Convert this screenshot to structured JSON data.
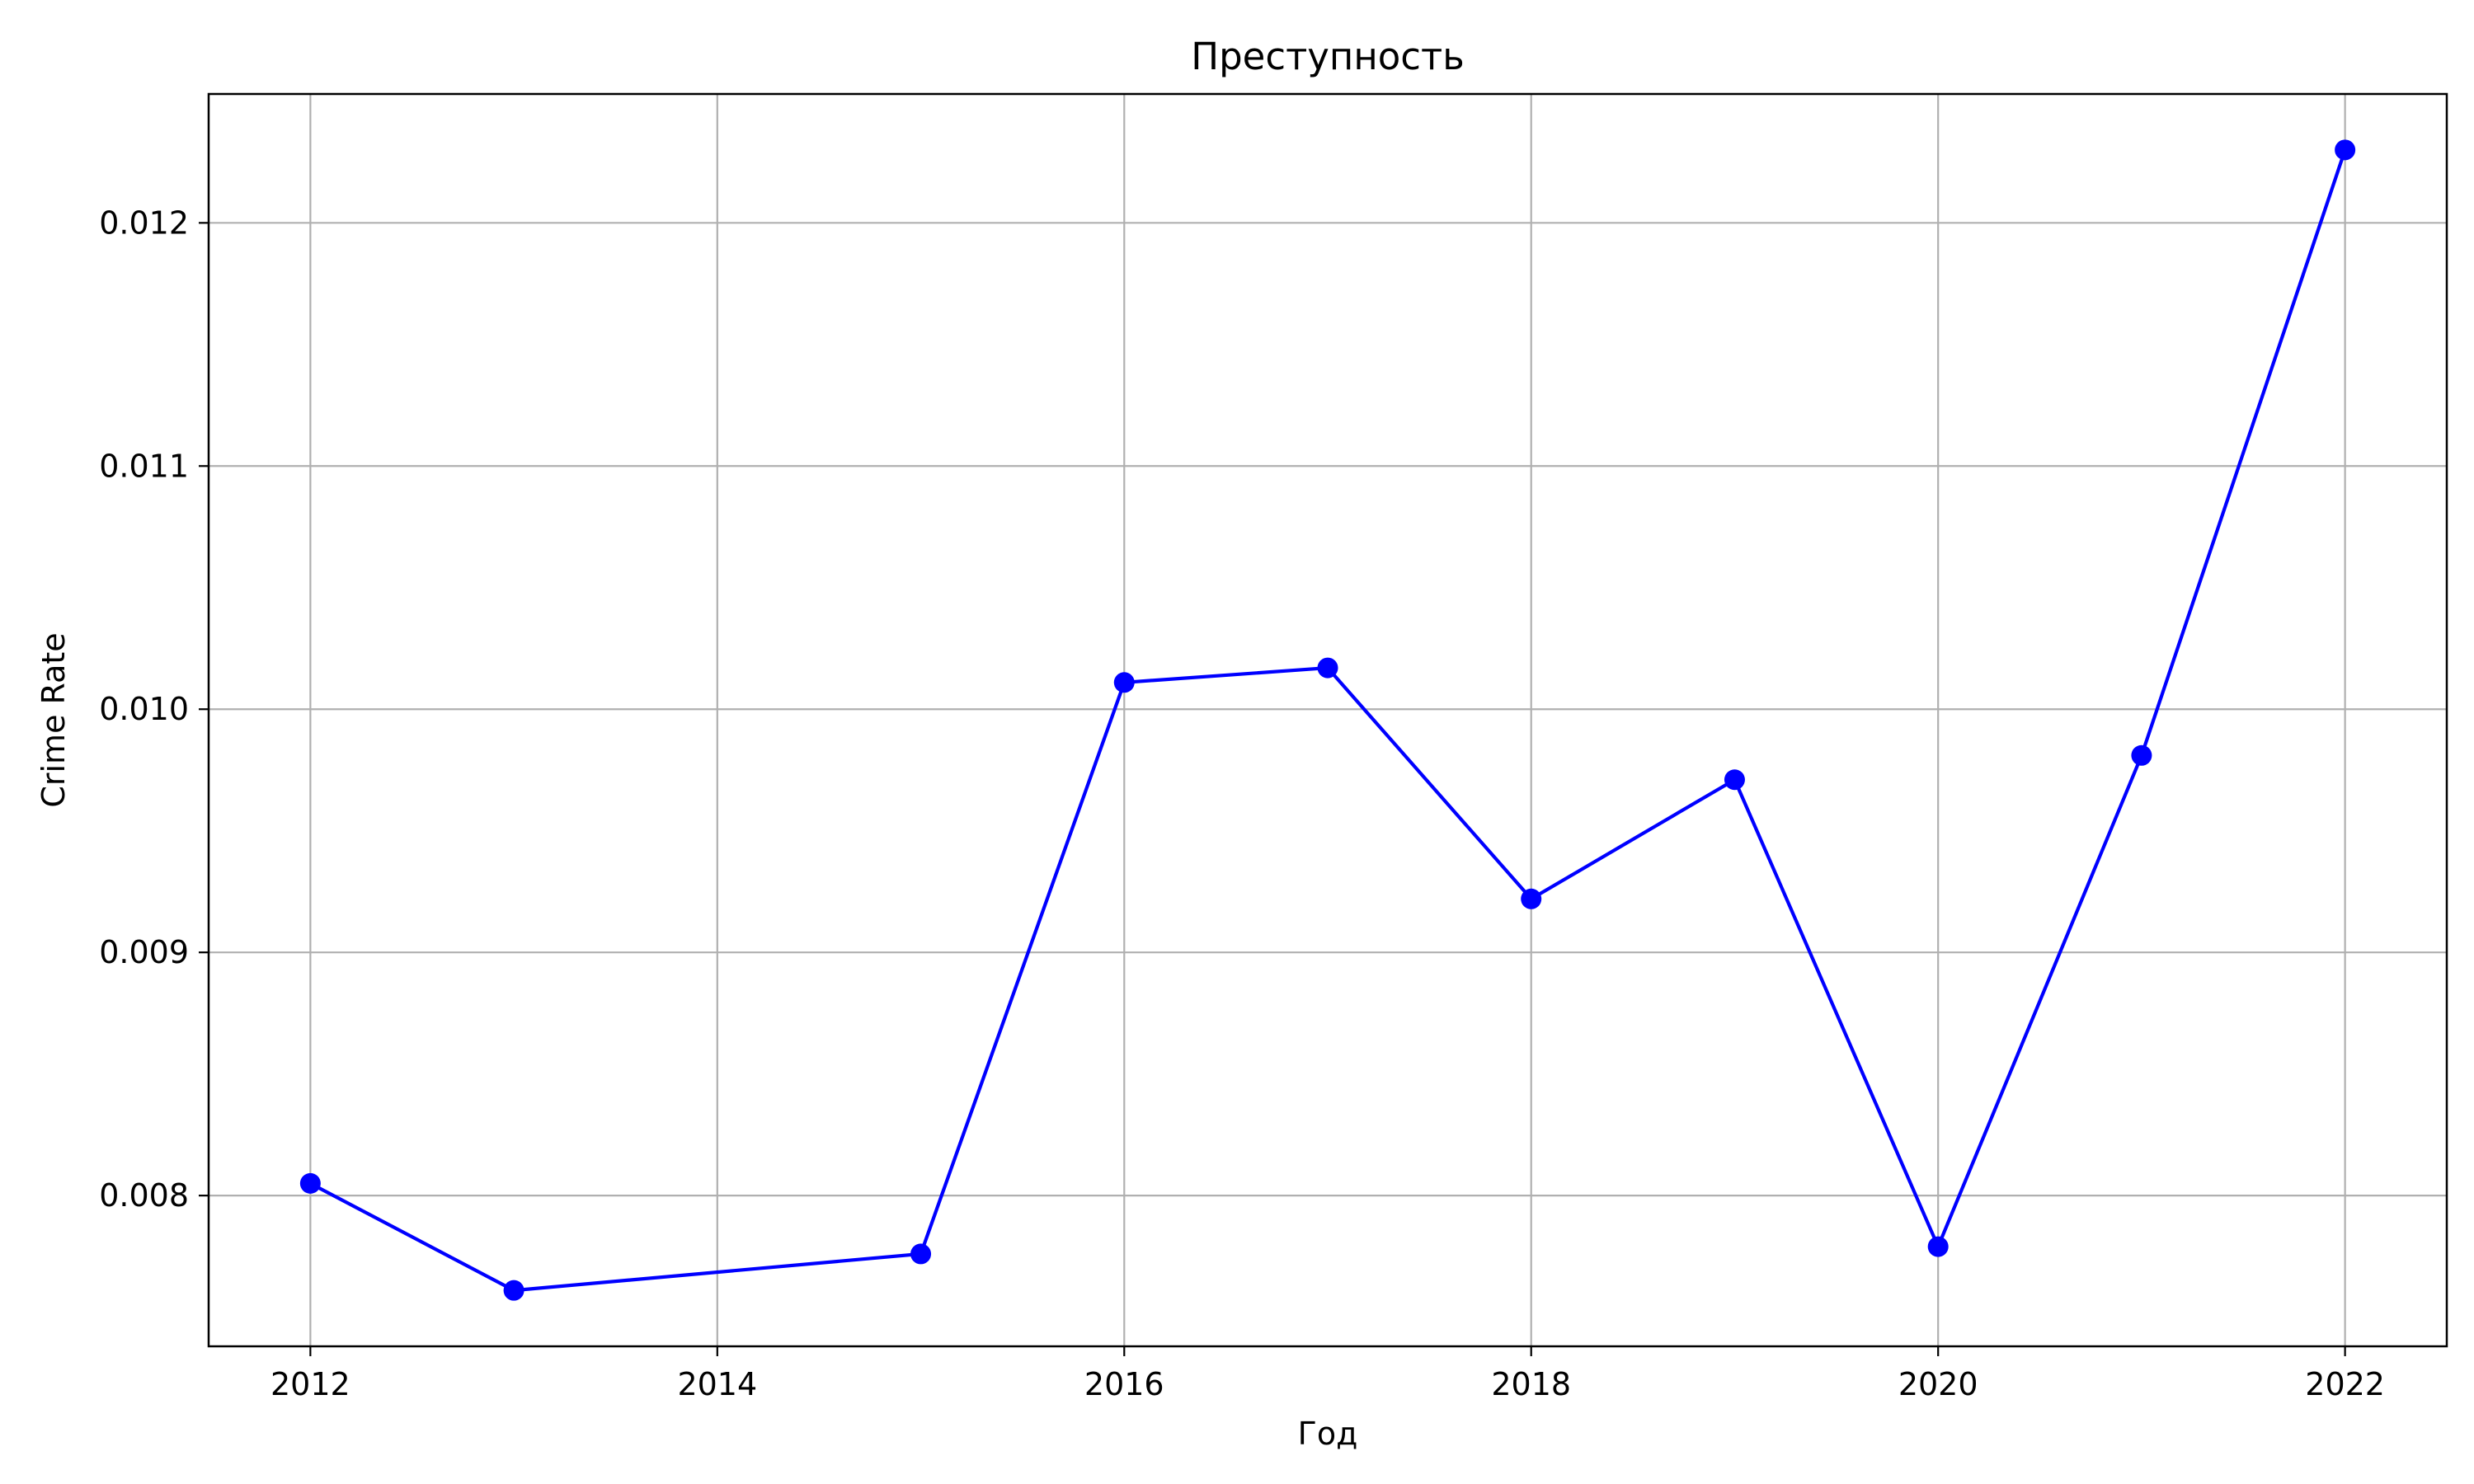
{
  "chart_data": {
    "type": "line",
    "title": "Преступность",
    "xlabel": "Год",
    "ylabel": "Crime Rate",
    "x": [
      2012,
      2013,
      2015,
      2016,
      2017,
      2018,
      2019,
      2020,
      2021,
      2022
    ],
    "series": [
      {
        "values": [
          0.00805,
          0.00761,
          0.00776,
          0.01011,
          0.01017,
          0.00922,
          0.00971,
          0.00779,
          0.00981,
          0.0123
        ],
        "color": "#0000ff",
        "marker": "circle"
      }
    ],
    "xlim": [
      2011.5,
      2022.5
    ],
    "ylim": [
      0.00738,
      0.01253
    ],
    "xticks": [
      2012,
      2014,
      2016,
      2018,
      2020,
      2022
    ],
    "yticks": [
      0.008,
      0.009,
      0.01,
      0.011,
      0.012
    ],
    "ytick_labels": [
      "0.008",
      "0.009",
      "0.010",
      "0.011",
      "0.012"
    ],
    "grid": true,
    "grid_color": "#b0b0b0"
  }
}
